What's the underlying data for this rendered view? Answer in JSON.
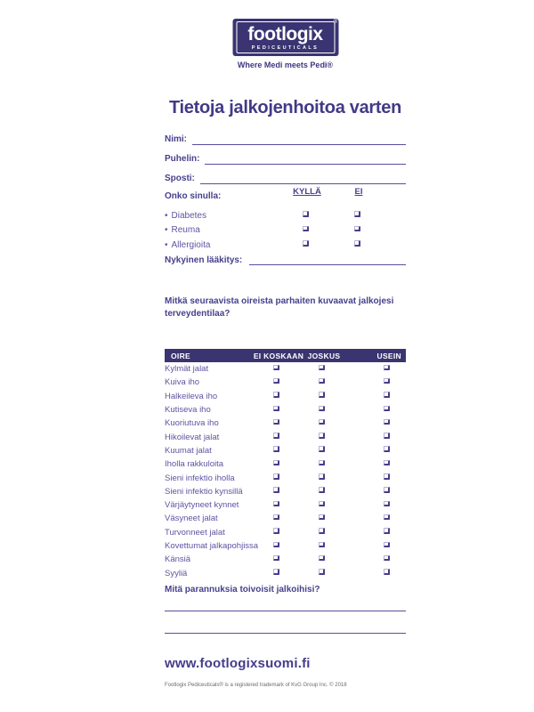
{
  "logo": {
    "brand": "footlogix",
    "registered": "®",
    "sub": "PEDICEUTICALS",
    "tagline": "Where Medi meets Pedi®"
  },
  "title": "Tietoja jalkojenhoitoa varten",
  "contact_fields": [
    {
      "label": "Nimi:"
    },
    {
      "label": "Puhelin:"
    },
    {
      "label": "Sposti:"
    }
  ],
  "conditions": {
    "heading": "Onko sinulla:",
    "col_yes": "KYLLÄ",
    "col_no": "EI",
    "items": [
      "Diabetes",
      "Reuma",
      "Allergioita"
    ]
  },
  "medication_label": "Nykyinen lääkitys:",
  "symptoms_question": "Mitkä seuraavista oireista parhaiten kuvaavat jalkojesi terveydentilaa?",
  "symptoms_table": {
    "headers": [
      "OIRE",
      "EI KOSKAAN",
      "JOSKUS",
      "USEIN"
    ],
    "rows": [
      "Kylmät jalat",
      "Kuiva iho",
      "Halkeileva iho",
      "Kutiseva iho",
      "Kuoriutuva iho",
      "Hikoilevat jalat",
      "Kuumat jalat",
      "Iholla rakkuloita",
      "Sieni infektio iholla",
      "Sieni infektio kynsillä",
      "Värjäytyneet kynnet",
      "Väsyneet jalat",
      "Turvonneet jalat",
      "Kovettumat jalkapohjissa",
      "Känsiä",
      "Syyliä"
    ]
  },
  "improvements_question": "Mitä parannuksia toivoisit jalkoihisi?",
  "footer": {
    "website": "www.footlogixsuomi.fi",
    "legal": "Footlogix Pediceuticals® is a registered trademark of KvG Group Inc. © 2018"
  },
  "colors": {
    "brand_purple": "#3a3472",
    "heading_purple": "#47408c",
    "body_purple": "#5d54a2"
  }
}
